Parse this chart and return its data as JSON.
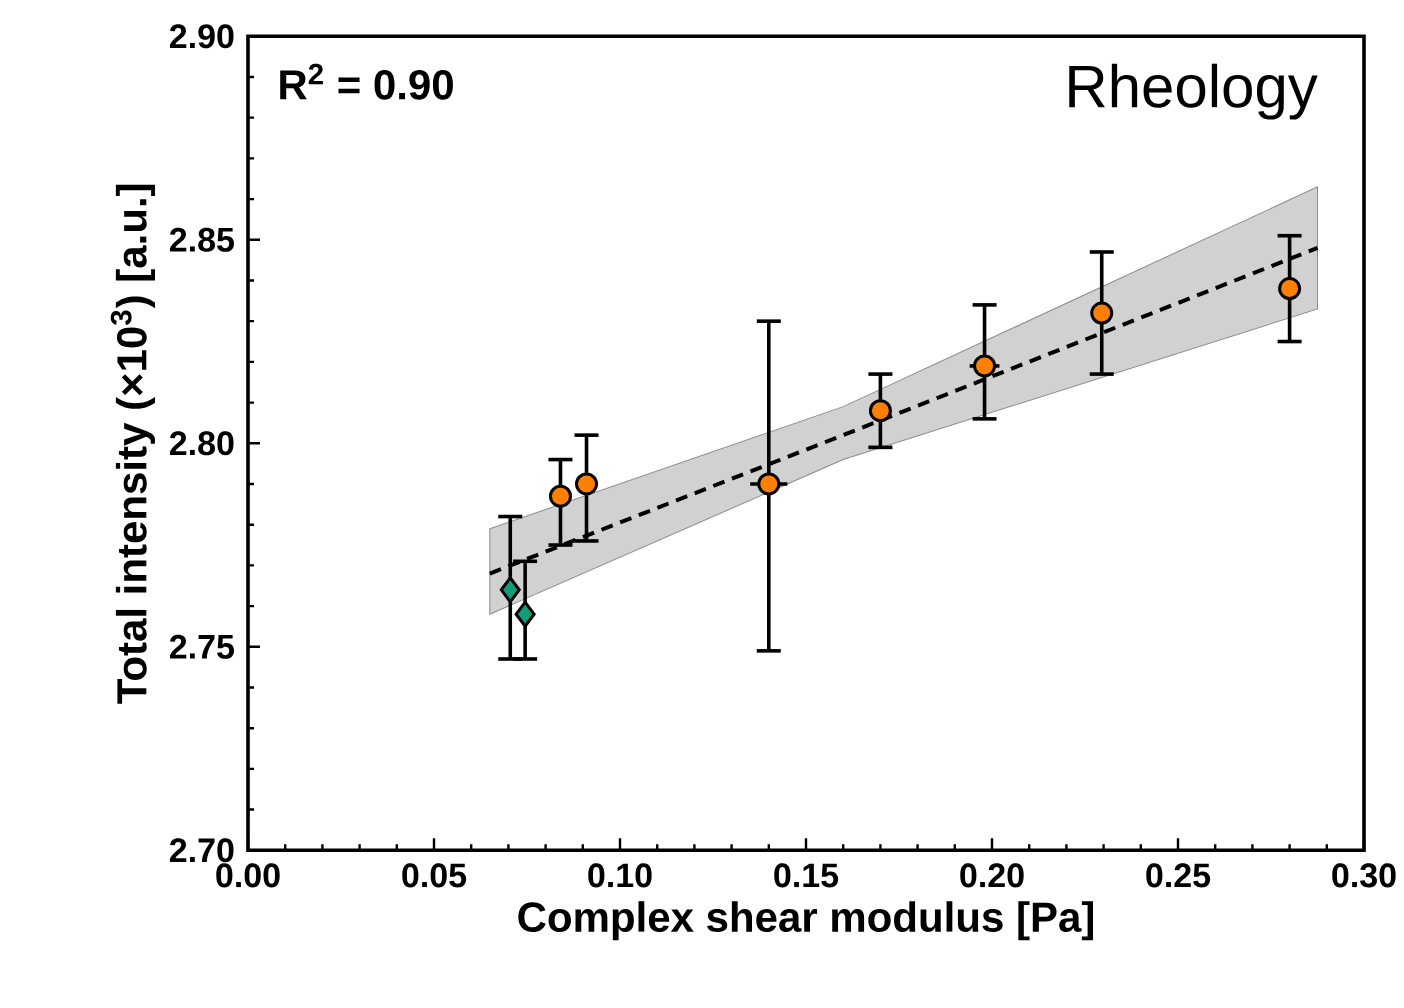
{
  "chart_data": {
    "type": "scatter",
    "xlabel": "Complex shear modulus [Pa]",
    "ylabel": "Total intensity (×10$^{3}$) [a.u.]",
    "annotations": [
      "R$^{2}$ = 0.90",
      "Rheology"
    ],
    "xlim": [
      0,
      0.3
    ],
    "xticks": [
      {
        "value": 0,
        "label": "0.00"
      },
      {
        "value": 0.05,
        "label": "0.05"
      },
      {
        "value": 0.1,
        "label": "0.10"
      },
      {
        "value": 0.15,
        "label": "0.15"
      },
      {
        "value": 0.2,
        "label": "0.20"
      },
      {
        "value": 0.25,
        "label": "0.25"
      },
      {
        "value": 0.3,
        "label": "0.30"
      }
    ],
    "ylim": [
      2.7,
      2.9
    ],
    "yticks": [
      {
        "value": 2.7,
        "label": "2.70"
      },
      {
        "value": 2.75,
        "label": "2.75"
      },
      {
        "value": 2.8,
        "label": "2.80"
      },
      {
        "value": 2.85,
        "label": "2.85"
      },
      {
        "value": 2.9,
        "label": "2.90"
      }
    ],
    "grid": false,
    "series": [
      {
        "type": "line",
        "color": "#000000",
        "line_style": "dashed",
        "marker": "none",
        "x": [
          0.065,
          0.16,
          0.2875
        ],
        "values": [
          2.768,
          2.802,
          2.848
        ],
        "lower": [
          2.758,
          2.796,
          2.833
        ],
        "upper": [
          2.779,
          2.809,
          2.863
        ]
      },
      {
        "color": "#ff8000",
        "marker": "circle",
        "x": [
          0.084,
          0.091,
          0.14,
          0.17,
          0.198,
          0.2295,
          0.28
        ],
        "values": [
          2.787,
          2.79,
          2.79,
          2.808,
          2.819,
          2.832,
          2.838
        ],
        "errors": [
          [
            2.775,
            2.796
          ],
          [
            2.776,
            2.802
          ],
          [
            2.749,
            2.83
          ],
          [
            2.799,
            2.817
          ],
          [
            2.806,
            2.834
          ],
          [
            2.817,
            2.847
          ],
          [
            2.825,
            2.851
          ]
        ],
        "xerrors": [
          null,
          null,
          0.005,
          null,
          0.004,
          null,
          null
        ]
      },
      {
        "color": "#129c7a",
        "marker": "diamond",
        "x": [
          0.0705,
          0.0745
        ],
        "values": [
          2.764,
          2.758
        ],
        "errors": [
          [
            2.747,
            2.782
          ],
          [
            2.747,
            2.771
          ]
        ]
      }
    ]
  }
}
